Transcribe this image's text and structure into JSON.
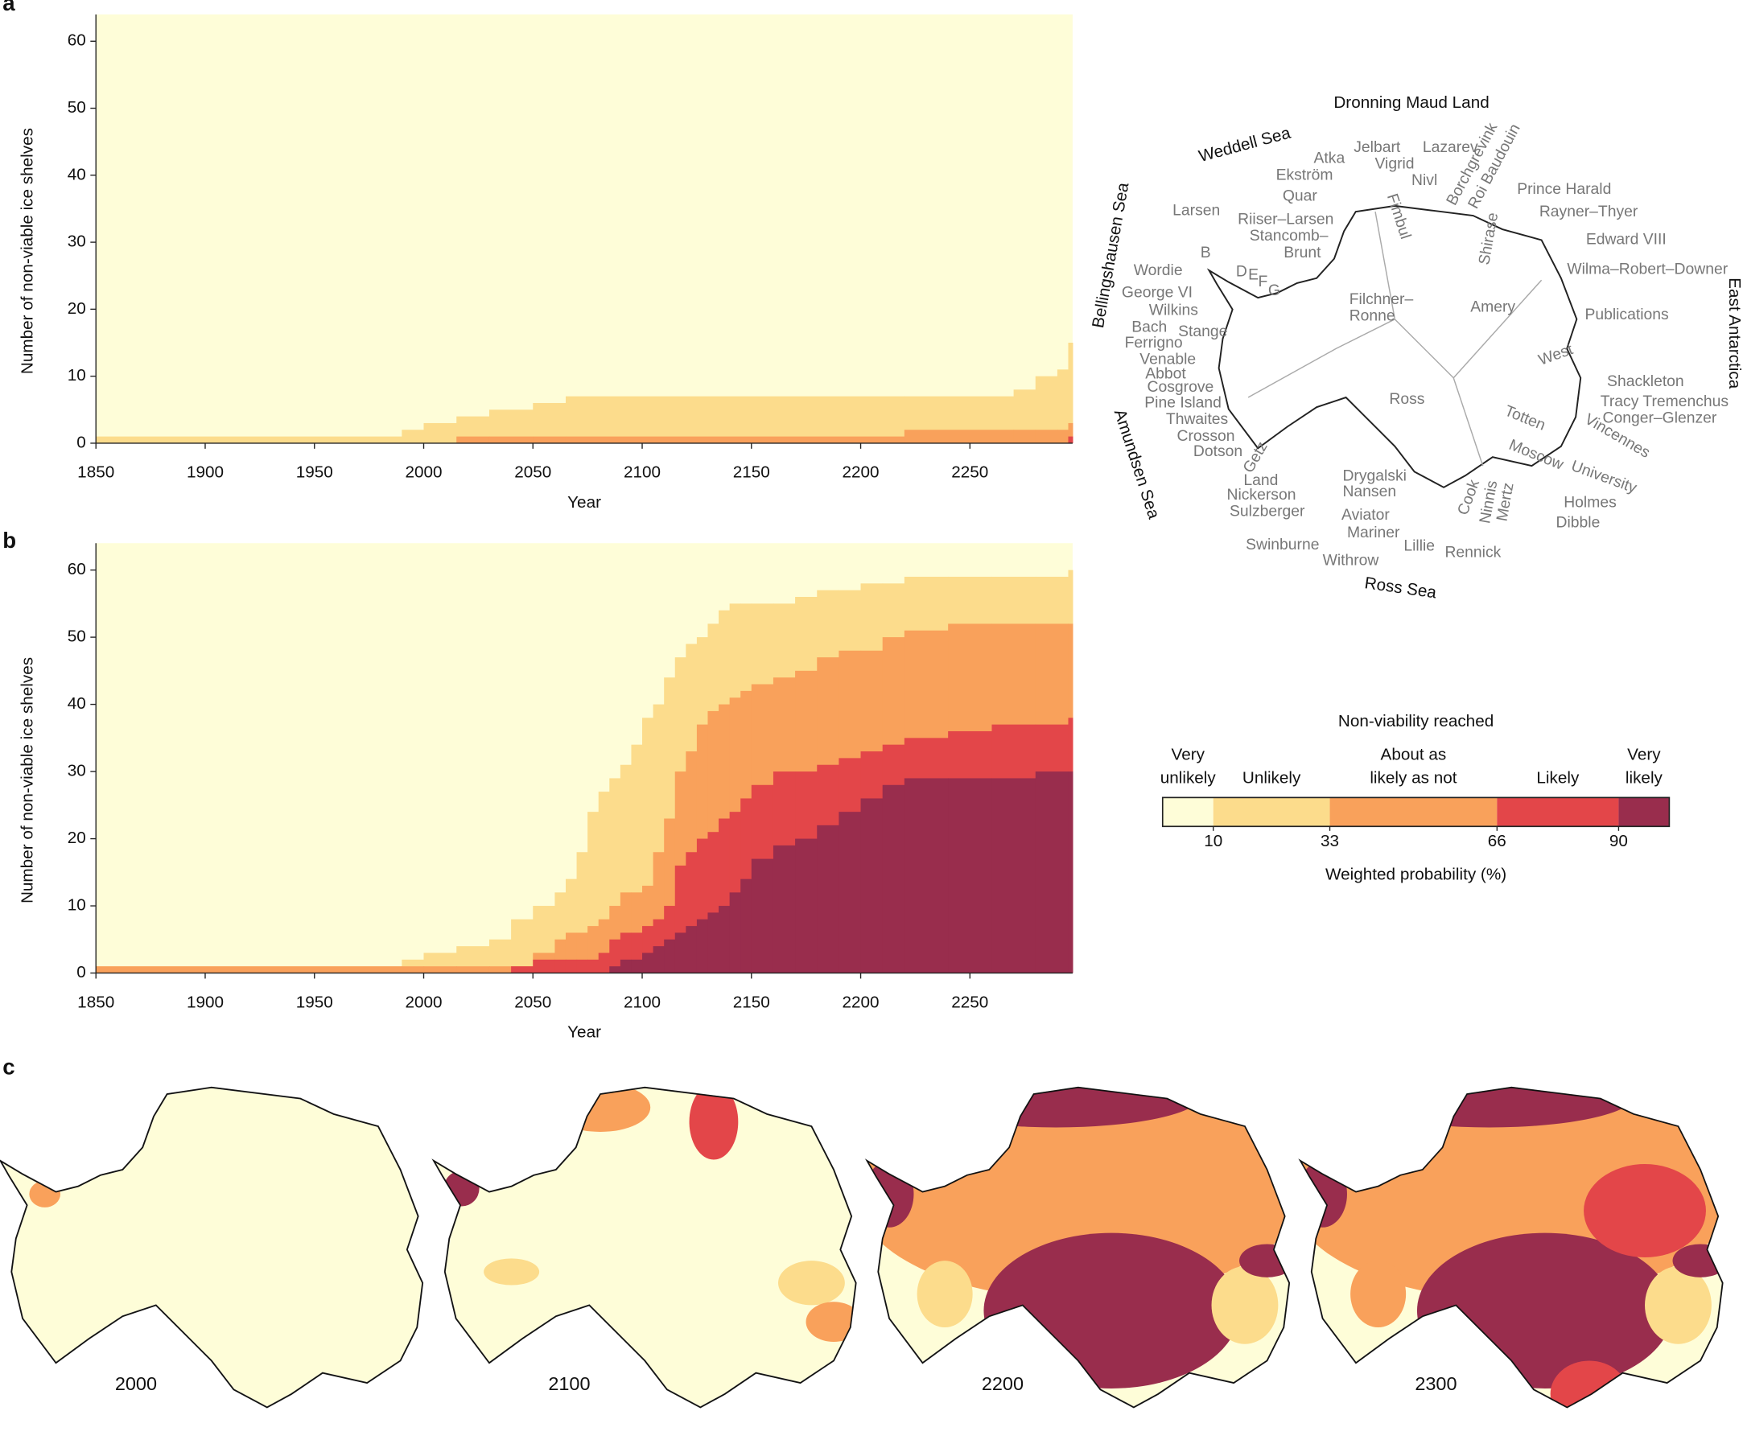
{
  "chart_data": [
    {
      "type": "area",
      "label": "a",
      "xlabel": "Year",
      "ylabel": "Number of non-viable ice shelves",
      "background": "#fefdd8",
      "x": [
        1850,
        1990,
        2000,
        2015,
        2030,
        2050,
        2065,
        2220,
        2270,
        2280,
        2290,
        2295
      ],
      "series": [
        {
          "color": "#fcdc8c",
          "values": [
            1,
            2,
            3,
            4,
            5,
            6,
            7,
            7,
            8,
            10,
            11,
            15
          ]
        },
        {
          "color": "#f9a15b",
          "values": [
            0,
            0,
            0,
            1,
            1,
            1,
            1,
            2,
            2,
            2,
            2,
            3
          ]
        },
        {
          "color": "#e34649",
          "values": [
            0,
            0,
            0,
            0,
            0,
            0,
            0,
            0,
            0,
            0,
            0,
            1
          ]
        },
        {
          "color": "#992d4d",
          "values": [
            0,
            0,
            0,
            0,
            0,
            0,
            0,
            0,
            0,
            0,
            0,
            0
          ]
        }
      ],
      "xlim": [
        1850,
        2297
      ],
      "ylim": [
        0,
        64
      ],
      "xticks": [
        1850,
        1900,
        1950,
        2000,
        2050,
        2100,
        2150,
        2200,
        2250
      ],
      "yticks": [
        0,
        10,
        20,
        30,
        40,
        50,
        60
      ]
    },
    {
      "type": "area",
      "label": "b",
      "xlabel": "Year",
      "ylabel": "Number of non-viable ice shelves",
      "background": "#fefdd8",
      "x": [
        1850,
        1990,
        2000,
        2015,
        2030,
        2040,
        2050,
        2060,
        2065,
        2070,
        2075,
        2080,
        2085,
        2090,
        2095,
        2100,
        2105,
        2110,
        2115,
        2120,
        2125,
        2130,
        2135,
        2140,
        2145,
        2150,
        2160,
        2170,
        2180,
        2190,
        2200,
        2210,
        2220,
        2240,
        2260,
        2280,
        2295
      ],
      "series": [
        {
          "color": "#fcdc8c",
          "values": [
            1,
            2,
            3,
            4,
            5,
            8,
            10,
            12,
            14,
            18,
            24,
            27,
            29,
            31,
            34,
            38,
            40,
            44,
            47,
            49,
            50,
            52,
            54,
            55,
            55,
            55,
            55,
            56,
            57,
            57,
            58,
            58,
            59,
            59,
            59,
            59,
            60
          ]
        },
        {
          "color": "#f9a15b",
          "values": [
            1,
            1,
            1,
            1,
            1,
            1,
            3,
            5,
            6,
            6,
            7,
            8,
            10,
            12,
            12,
            13,
            18,
            23,
            30,
            33,
            37,
            39,
            40,
            41,
            42,
            43,
            44,
            45,
            47,
            48,
            48,
            50,
            51,
            52,
            52,
            52,
            52
          ]
        },
        {
          "color": "#e34649",
          "values": [
            0,
            0,
            0,
            0,
            0,
            1,
            2,
            2,
            2,
            2,
            2,
            3,
            5,
            6,
            6,
            7,
            8,
            10,
            16,
            18,
            20,
            21,
            23,
            24,
            26,
            28,
            30,
            30,
            31,
            32,
            33,
            34,
            35,
            36,
            37,
            37,
            38
          ]
        },
        {
          "color": "#992d4d",
          "values": [
            0,
            0,
            0,
            0,
            0,
            0,
            0,
            0,
            0,
            0,
            0,
            0,
            1,
            2,
            2,
            3,
            4,
            5,
            6,
            7,
            8,
            9,
            10,
            12,
            14,
            17,
            19,
            20,
            22,
            24,
            26,
            28,
            29,
            29,
            29,
            30,
            30
          ]
        }
      ],
      "xlim": [
        1850,
        2297
      ],
      "ylim": [
        0,
        64
      ],
      "xticks": [
        1850,
        1900,
        1950,
        2000,
        2050,
        2100,
        2150,
        2200,
        2250
      ],
      "yticks": [
        0,
        10,
        20,
        30,
        40,
        50,
        60
      ]
    }
  ],
  "legend": {
    "title": "Non-viability reached",
    "labels": [
      [
        "Very",
        "unlikely"
      ],
      [
        "Unlikely"
      ],
      [
        "About as",
        "likely as not"
      ],
      [
        "Likely"
      ],
      [
        "Very",
        "likely"
      ]
    ],
    "colors": [
      "#fefdd8",
      "#fcdc8c",
      "#f9a15b",
      "#e34649",
      "#992d4d"
    ],
    "range": [
      0,
      100
    ],
    "ticks": [
      10,
      33,
      66,
      90
    ],
    "xlabel": "Weighted probability (%)"
  },
  "map": {
    "areas": [
      "Dronning Maud Land",
      "Weddell Sea",
      "Bellingshausen Sea",
      "Amundsen Sea",
      "Ross Sea",
      "East Antarctica"
    ],
    "labels": [
      "Larsen",
      "B",
      "D",
      "E",
      "F",
      "G",
      "Wordie",
      "George VI",
      "Wilkins",
      "Bach",
      "Stange",
      "Ferrigno",
      "Venable",
      "Abbot",
      "Cosgrove",
      "Pine Island",
      "Thwaites",
      "Crosson",
      "Dotson",
      "Getz",
      "Land",
      "Nickerson",
      "Sulzberger",
      "Swinburne",
      "Withrow",
      "Drygalski",
      "Nansen",
      "Aviator",
      "Mariner",
      "Lillie",
      "Rennick",
      "Cook",
      "Ninnis",
      "Mertz",
      "Dibble",
      "Holmes",
      "University",
      "Vincennes",
      "Moscow",
      "Totten",
      "Conger–Glenzer",
      "Tracy Tremenchus",
      "Shackleton",
      "West",
      "Publications",
      "Amery",
      "Ross",
      "Filchner–",
      "Ronne",
      "Wilma–Robert–Downer",
      "Edward VIII",
      "Rayner–Thyer",
      "Prince Harald",
      "Shirase",
      "Borchgrevink",
      "Roi Baudouin",
      "Lazarev",
      "Nivl",
      "Vigrid",
      "Jelbart",
      "Atka",
      "Ekström",
      "Quar",
      "Fimbul",
      "Riiser–Larsen",
      "Stancomb–",
      "Brunt"
    ]
  },
  "panel_c": {
    "label": "c",
    "years": [
      2000,
      2100,
      2200,
      2300
    ]
  }
}
